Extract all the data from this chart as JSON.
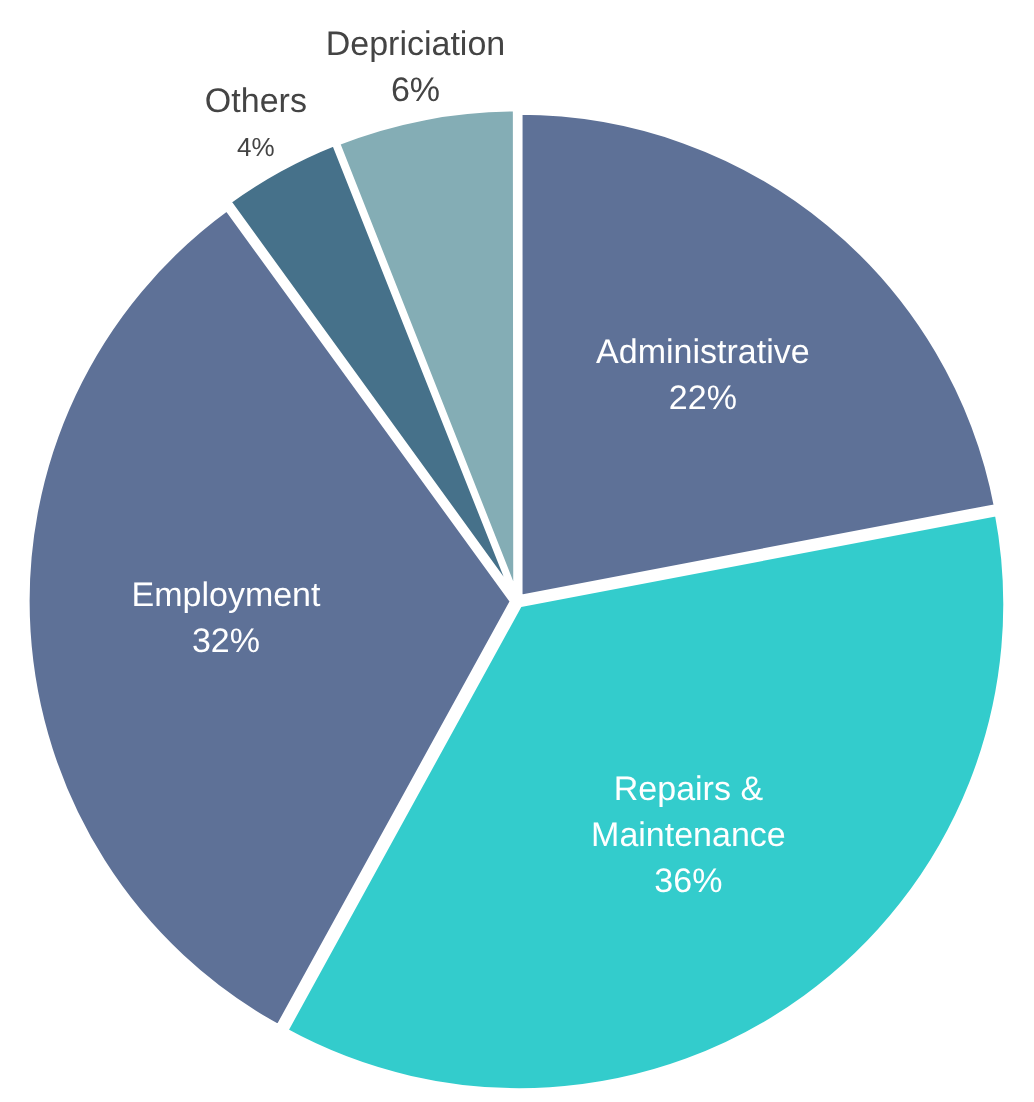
{
  "chart_data": {
    "type": "pie",
    "categories": [
      "Administrative",
      "Repairs & Maintenance",
      "Employment",
      "Others",
      "Depriciation"
    ],
    "values": [
      22,
      36,
      32,
      4,
      6
    ],
    "colors": [
      "#5e7197",
      "#33cccc",
      "#5e7197",
      "#46718a",
      "#84adb5"
    ],
    "value_labels": [
      "22%",
      "36%",
      "32%",
      "4%",
      "6%"
    ],
    "legend": false
  }
}
